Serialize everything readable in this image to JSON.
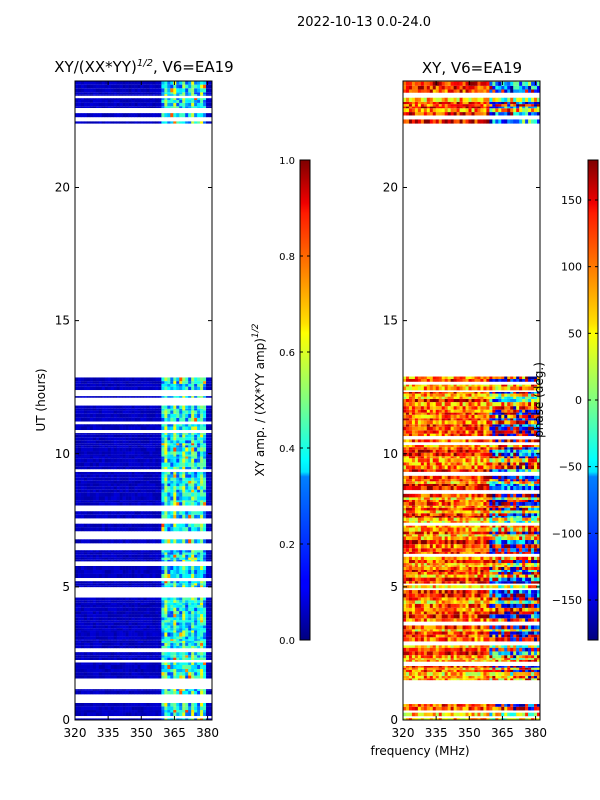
{
  "suptitle": "2022-10-13 0.0-24.0",
  "chart_data": [
    {
      "type": "heatmap",
      "title": "XY/(XX*YY)",
      "title_sup": "1/2",
      "title_suffix": ", V6=EA19",
      "xlabel": "",
      "ylabel": "UT (hours)",
      "xlim": [
        320,
        382
      ],
      "ylim": [
        0,
        24
      ],
      "xticks": [
        320,
        335,
        350,
        365,
        380
      ],
      "yticks": [
        0,
        5,
        10,
        15,
        20
      ],
      "data_rows_hours": [
        [
          0.0,
          12.9
        ],
        [
          22.4,
          24.0
        ]
      ],
      "gap_hours": [
        [
          0.6,
          0.9
        ],
        [
          1.1,
          1.3
        ],
        [
          12.9,
          22.4
        ]
      ],
      "colorbar": {
        "label": "XY amp. / (XX*YY amp)",
        "label_sup": "1/2",
        "range": [
          0.0,
          1.0
        ],
        "ticks": [
          "0.0",
          "0.2",
          "0.4",
          "0.6",
          "0.8",
          "1.0"
        ],
        "tick_values": [
          0.0,
          0.2,
          0.4,
          0.6,
          0.8,
          1.0
        ]
      }
    },
    {
      "type": "heatmap",
      "title": "XY, V6=EA19",
      "xlabel": "frequency (MHz)",
      "ylabel": "",
      "xlim": [
        320,
        382
      ],
      "ylim": [
        0,
        24
      ],
      "xticks": [
        320,
        335,
        350,
        365,
        380
      ],
      "yticks": [
        0,
        5,
        10,
        15,
        20
      ],
      "data_rows_hours": [
        [
          0.0,
          12.9
        ],
        [
          22.4,
          24.0
        ]
      ],
      "gap_hours": [
        [
          0.6,
          0.9
        ],
        [
          1.1,
          1.3
        ],
        [
          12.9,
          22.4
        ]
      ],
      "colorbar": {
        "label": "phase (deg.)",
        "range": [
          -180,
          180
        ],
        "ticks": [
          "150",
          "100",
          "50",
          "0",
          "−50",
          "−100",
          "−150"
        ],
        "tick_values": [
          150,
          100,
          50,
          0,
          -50,
          -100,
          -150
        ]
      }
    }
  ]
}
